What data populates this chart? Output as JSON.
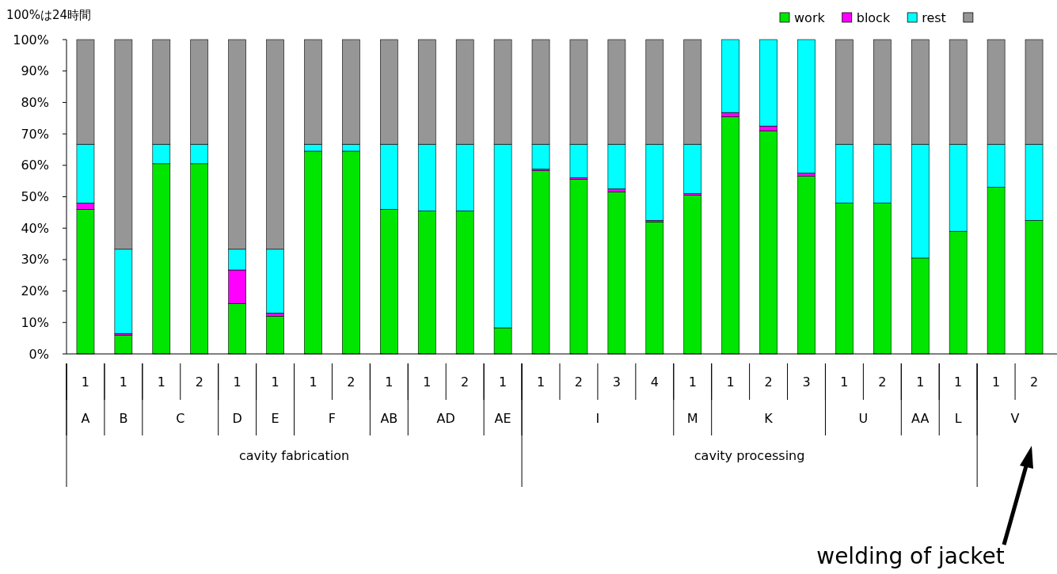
{
  "chart_data": {
    "type": "bar",
    "stacked": true,
    "legend": "top right",
    "grid": false,
    "categories": [
      "1",
      "1",
      "1",
      "2",
      "1",
      "1",
      "1",
      "2",
      "1",
      "1",
      "2",
      "1",
      "1",
      "2",
      "3",
      "4",
      "1",
      "1",
      "2",
      "3",
      "1",
      "2",
      "1",
      "1",
      "1",
      "2"
    ],
    "series": [
      {
        "name": "work",
        "color": "#00e600",
        "values": [
          46,
          6,
          60.5,
          60.5,
          16,
          12,
          64.5,
          64.5,
          46,
          45.5,
          45.5,
          8.3,
          58.3,
          55.5,
          51.5,
          42,
          50.5,
          75.5,
          71,
          56.5,
          48,
          48,
          30.5,
          39,
          53,
          42.5
        ]
      },
      {
        "name": "block",
        "color": "#ff00ff",
        "values": [
          2,
          0.5,
          0,
          0,
          10.7,
          1,
          0,
          0,
          0,
          0,
          0,
          0,
          0.5,
          0.5,
          1,
          0.5,
          0.5,
          1.3,
          1.5,
          1,
          0,
          0,
          0,
          0,
          0,
          0
        ]
      },
      {
        "name": "rest",
        "color": "#00ffff",
        "values": [
          18.7,
          26.8,
          6.2,
          6.2,
          6.6,
          20.3,
          2.2,
          2.2,
          20.7,
          21.2,
          21.2,
          58.4,
          7.9,
          10.7,
          14.2,
          24.2,
          15.7,
          23.2,
          27.5,
          42.5,
          18.7,
          18.7,
          36.2,
          27.7,
          13.7,
          24.2
        ]
      },
      {
        "color": "#969696",
        "values": [
          33.3,
          66.7,
          33.3,
          33.3,
          66.7,
          66.7,
          33.3,
          33.3,
          33.3,
          33.3,
          33.3,
          33.3,
          33.3,
          33.3,
          33.3,
          33.3,
          33.3,
          0,
          0,
          0,
          33.3,
          33.3,
          33.3,
          33.3,
          33.3,
          33.3
        ]
      }
    ],
    "ylim": [
      0,
      100
    ],
    "yticks": [
      {
        "value": 0,
        "label": "0%"
      },
      {
        "value": 10,
        "label": "10%"
      },
      {
        "value": 20,
        "label": "20%"
      },
      {
        "value": 30,
        "label": "30%"
      },
      {
        "value": 40,
        "label": "40%"
      },
      {
        "value": 50,
        "label": "50%"
      },
      {
        "value": 60,
        "label": "60%"
      },
      {
        "value": 70,
        "label": "70%"
      },
      {
        "value": 80,
        "label": "80%"
      },
      {
        "value": 90,
        "label": "90%"
      },
      {
        "value": 100,
        "label": "100%"
      }
    ],
    "annotations": [
      "100%は24時間",
      "A",
      "B",
      "C",
      "D",
      "E",
      "F",
      "AB",
      "AD",
      "AE",
      "I",
      "M",
      "K",
      "U",
      "AA",
      "L",
      "V",
      "cavity fabrication",
      "cavity processing",
      "welding of jacket"
    ]
  }
}
